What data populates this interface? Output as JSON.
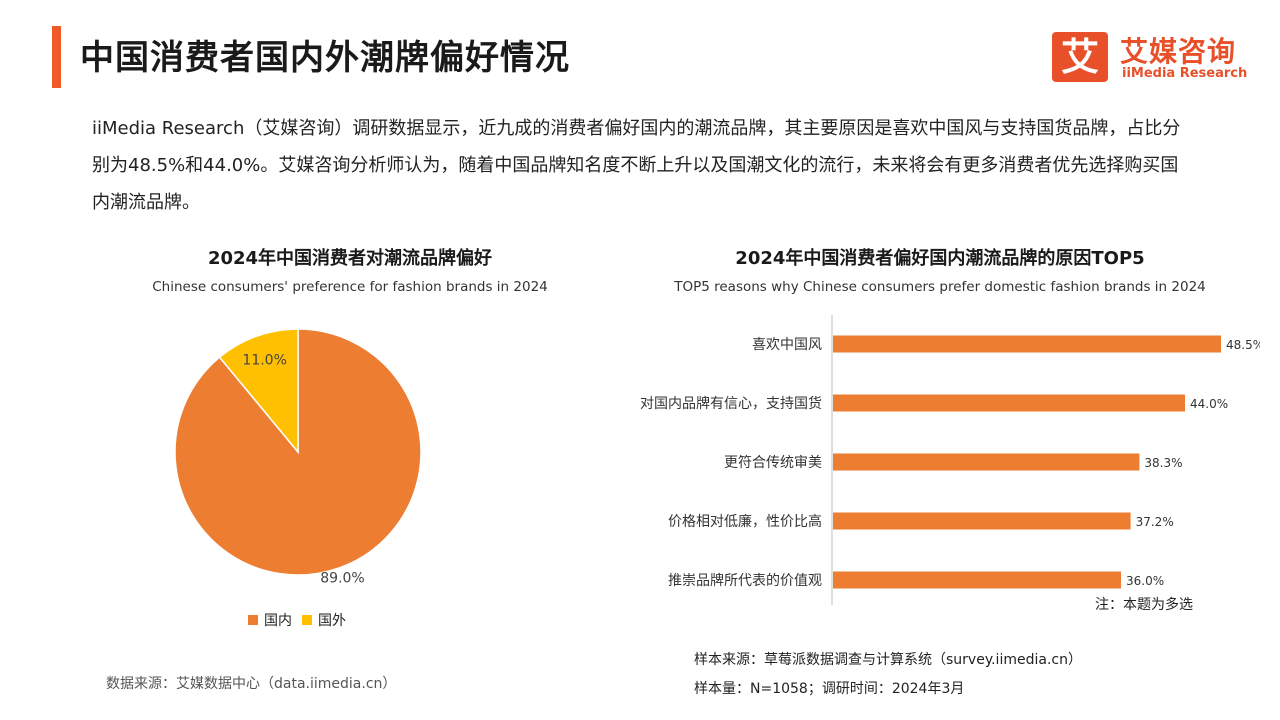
{
  "header": {
    "title": "中国消费者国内外潮牌偏好情况",
    "accent_color": "#f05a28"
  },
  "logo": {
    "mark": "艾",
    "name_cn": "艾媒咨询",
    "name_en": "iiMedia Research",
    "color": "#e8502a"
  },
  "intro": "iiMedia Research（艾媒咨询）调研数据显示，近九成的消费者偏好国内的潮流品牌，其主要原因是喜欢中国风与支持国货品牌，占比分别为48.5%和44.0%。艾媒咨询分析师认为，随着中国品牌知名度不断上升以及国潮文化的流行，未来将会有更多消费者优先选择购买国内潮流品牌。",
  "chart_data": [
    {
      "type": "pie",
      "title": "2024年中国消费者对潮流品牌偏好",
      "subtitle": "Chinese consumers' preference for fashion brands in 2024",
      "categories": [
        "国内",
        "国外"
      ],
      "values": [
        89.0,
        11.0
      ],
      "labels": [
        "89.0%",
        "11.0%"
      ],
      "colors": [
        "#ed7d31",
        "#fec000"
      ],
      "legend": "bottom"
    },
    {
      "type": "bar",
      "orientation": "horizontal",
      "title": "2024年中国消费者偏好国内潮流品牌的原因TOP5",
      "subtitle": "TOP5 reasons why Chinese consumers prefer domestic fashion brands in 2024",
      "categories": [
        "喜欢中国风",
        "对国内品牌有信心，支持国货",
        "更符合传统审美",
        "价格相对低廉，性价比高",
        "推崇品牌所代表的价值观"
      ],
      "values": [
        48.5,
        44.0,
        38.3,
        37.2,
        36.0
      ],
      "labels": [
        "48.5%",
        "44.0%",
        "38.3%",
        "37.2%",
        "36.0%"
      ],
      "color": "#ed7d31",
      "xlim": [
        0,
        55
      ],
      "note": "注：本题为多选"
    }
  ],
  "footer": {
    "source_left": "数据来源：艾媒数据中心（data.iimedia.cn）",
    "sample_source": "样本来源：草莓派数据调查与计算系统（survey.iimedia.cn）",
    "sample_size": "样本量：N=1058；调研时间：2024年3月"
  }
}
